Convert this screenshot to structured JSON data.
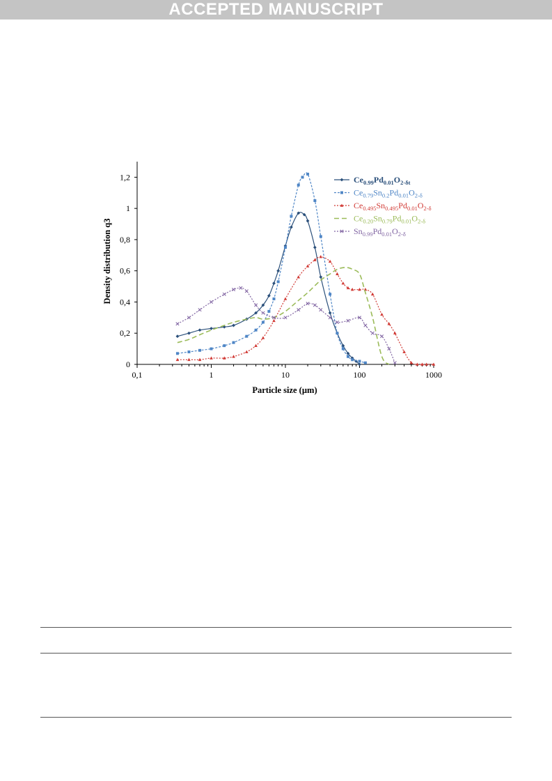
{
  "banner": {
    "label": "ACCEPTED MANUSCRIPT"
  },
  "colors": {
    "banner_bg": "#c4c4c4"
  },
  "chart_data": {
    "type": "line",
    "xlabel": "Particle size (µm)",
    "ylabel": "Density distribution q3",
    "xscale": "log",
    "xlim": [
      0.1,
      1000
    ],
    "ylim": [
      0,
      1.3
    ],
    "x_ticks": [
      "0,1",
      "1",
      "10",
      "100",
      "1000"
    ],
    "y_ticks": [
      "0",
      "0,2",
      "0,4",
      "0,6",
      "0,8",
      "1",
      "1,2"
    ],
    "grid": false,
    "legend_position": "top-right",
    "series": [
      {
        "name": "Ce0.99Pd0.01O2-δt",
        "legend": [
          [
            "Ce",
            ""
          ],
          [
            "0.99",
            "sub"
          ],
          [
            "Pd",
            ""
          ],
          [
            "0.01",
            "sub"
          ],
          [
            "O",
            ""
          ],
          [
            "2-δt",
            "sub"
          ]
        ],
        "legend_bold": true,
        "color": "#2a4f7a",
        "dash": "",
        "marker": "diamond",
        "x": [
          0.35,
          0.5,
          0.7,
          1,
          1.5,
          2,
          3,
          4,
          5,
          6,
          7,
          8,
          10,
          12,
          15,
          18,
          20,
          25,
          30,
          40,
          50,
          60,
          70,
          80,
          90,
          100
        ],
        "y": [
          0.18,
          0.2,
          0.22,
          0.23,
          0.24,
          0.25,
          0.29,
          0.33,
          0.38,
          0.44,
          0.52,
          0.6,
          0.76,
          0.88,
          0.97,
          0.96,
          0.92,
          0.75,
          0.56,
          0.33,
          0.2,
          0.12,
          0.07,
          0.04,
          0.02,
          0
        ]
      },
      {
        "name": "Ce0.79Sn0.2Pd0.01O2-δ",
        "legend": [
          [
            "Ce",
            ""
          ],
          [
            "0.79",
            "sub"
          ],
          [
            "Sn",
            ""
          ],
          [
            "0.2",
            "sub"
          ],
          [
            "Pd",
            ""
          ],
          [
            "0.01",
            "sub"
          ],
          [
            "O",
            ""
          ],
          [
            "2-δ",
            "sub"
          ]
        ],
        "legend_bold": false,
        "color": "#4f86c6",
        "dash": "3,2",
        "marker": "square",
        "x": [
          0.35,
          0.5,
          0.7,
          1,
          1.5,
          2,
          3,
          4,
          5,
          6,
          7,
          8,
          10,
          12,
          15,
          17,
          20,
          25,
          30,
          40,
          50,
          60,
          70,
          80,
          100,
          120
        ],
        "y": [
          0.07,
          0.08,
          0.09,
          0.1,
          0.12,
          0.14,
          0.18,
          0.22,
          0.27,
          0.34,
          0.42,
          0.53,
          0.75,
          0.95,
          1.15,
          1.2,
          1.22,
          1.05,
          0.82,
          0.45,
          0.2,
          0.1,
          0.05,
          0.03,
          0.02,
          0.01
        ]
      },
      {
        "name": "Ce0.495Sn0.495Pd0.01O2-δ",
        "legend": [
          [
            "Ce",
            ""
          ],
          [
            "0.495",
            "sub"
          ],
          [
            "Sn",
            ""
          ],
          [
            "0.495",
            "sub"
          ],
          [
            "Pd",
            ""
          ],
          [
            "0.01",
            "sub"
          ],
          [
            "O",
            ""
          ],
          [
            "2-δ",
            "sub"
          ]
        ],
        "legend_bold": false,
        "color": "#d13a35",
        "dash": "2,2",
        "marker": "triangle",
        "x": [
          0.35,
          0.5,
          0.7,
          1,
          1.5,
          2,
          3,
          4,
          5,
          7,
          10,
          15,
          20,
          25,
          30,
          40,
          50,
          60,
          70,
          80,
          100,
          120,
          150,
          200,
          250,
          300,
          400,
          500,
          600,
          700,
          800,
          1000
        ],
        "y": [
          0.03,
          0.03,
          0.03,
          0.04,
          0.04,
          0.05,
          0.08,
          0.12,
          0.17,
          0.28,
          0.42,
          0.56,
          0.63,
          0.67,
          0.69,
          0.66,
          0.58,
          0.52,
          0.49,
          0.48,
          0.48,
          0.48,
          0.45,
          0.32,
          0.26,
          0.2,
          0.08,
          0.01,
          0,
          0,
          0,
          0
        ]
      },
      {
        "name": "Ce0.20Sn0.79Pd0.01O2-δ",
        "legend": [
          [
            "Ce",
            ""
          ],
          [
            "0.20",
            "sub"
          ],
          [
            "Sn",
            ""
          ],
          [
            "0.79",
            "sub"
          ],
          [
            "Pd",
            ""
          ],
          [
            "0.01",
            "sub"
          ],
          [
            "O",
            ""
          ],
          [
            "2-δ",
            "sub"
          ]
        ],
        "legend_bold": false,
        "color": "#9bbb59",
        "dash": "7,4",
        "marker": "none",
        "x": [
          0.35,
          0.5,
          0.7,
          1,
          1.5,
          2,
          3,
          4,
          5,
          7,
          10,
          15,
          20,
          30,
          40,
          50,
          60,
          70,
          80,
          100,
          120,
          150,
          200,
          250
        ],
        "y": [
          0.14,
          0.16,
          0.19,
          0.22,
          0.25,
          0.27,
          0.29,
          0.3,
          0.29,
          0.3,
          0.34,
          0.41,
          0.46,
          0.54,
          0.58,
          0.61,
          0.62,
          0.62,
          0.61,
          0.58,
          0.46,
          0.3,
          0.05,
          0
        ]
      },
      {
        "name": "Sn0.99Pd0.01O2-δ",
        "legend": [
          [
            "Sn",
            ""
          ],
          [
            "0.99",
            "sub"
          ],
          [
            "Pd",
            ""
          ],
          [
            "0.01",
            "sub"
          ],
          [
            "O",
            ""
          ],
          [
            "2-δ",
            "sub"
          ]
        ],
        "legend_bold": false,
        "color": "#8064a2",
        "dash": "2,2",
        "marker": "x",
        "x": [
          0.35,
          0.5,
          0.7,
          1,
          1.5,
          2,
          2.5,
          3,
          4,
          5,
          7,
          10,
          15,
          20,
          25,
          30,
          40,
          50,
          70,
          100,
          120,
          150,
          200,
          250,
          300
        ],
        "y": [
          0.26,
          0.3,
          0.35,
          0.4,
          0.45,
          0.48,
          0.49,
          0.47,
          0.38,
          0.33,
          0.3,
          0.3,
          0.35,
          0.39,
          0.38,
          0.35,
          0.3,
          0.27,
          0.28,
          0.3,
          0.25,
          0.2,
          0.18,
          0.1,
          0.01
        ]
      }
    ]
  }
}
